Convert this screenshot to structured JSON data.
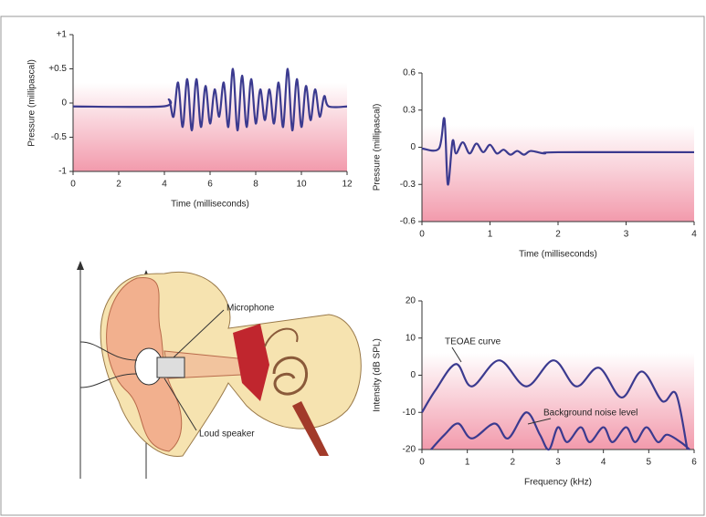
{
  "chart_data": [
    {
      "type": "line",
      "x_label": "Time (milliseconds)",
      "y_label": "Pressure (millipascal)",
      "x": [
        0,
        3.9,
        4.2,
        4.4,
        4.6,
        4.8,
        5.0,
        5.2,
        5.4,
        5.6,
        5.8,
        6.0,
        6.2,
        6.4,
        6.6,
        6.8,
        7.0,
        7.2,
        7.4,
        7.6,
        7.8,
        8.0,
        8.2,
        8.4,
        8.6,
        8.8,
        9.0,
        9.2,
        9.4,
        9.6,
        9.8,
        10.0,
        10.2,
        10.4,
        10.6,
        10.8,
        11.0,
        11.2,
        12
      ],
      "values": [
        -0.05,
        -0.05,
        0.05,
        -0.2,
        0.3,
        -0.35,
        0.35,
        -0.4,
        0.35,
        -0.35,
        0.25,
        -0.3,
        0.2,
        -0.2,
        0.3,
        -0.35,
        0.5,
        -0.4,
        0.4,
        -0.35,
        0.35,
        -0.3,
        0.2,
        -0.25,
        0.2,
        -0.3,
        0.3,
        -0.35,
        0.5,
        -0.4,
        0.35,
        -0.35,
        0.25,
        -0.25,
        0.2,
        -0.2,
        0.1,
        -0.05,
        -0.05
      ],
      "color": "#3b3a8f",
      "xlim": [
        0,
        12
      ],
      "ylim": [
        -1,
        1
      ],
      "xticks": [
        0,
        2,
        4,
        6,
        8,
        10,
        12
      ],
      "yticks": [
        {
          "value": 1,
          "label": "+1"
        },
        {
          "value": 0.5,
          "label": "+0.5"
        },
        0,
        -0.5,
        -1
      ]
    },
    {
      "type": "line",
      "x_label": "Time (milliseconds)",
      "y_label": "Pressure (millipascal)",
      "x": [
        0,
        0.25,
        0.33,
        0.38,
        0.45,
        0.5,
        0.6,
        0.7,
        0.8,
        0.9,
        1.0,
        1.1,
        1.2,
        1.3,
        1.4,
        1.5,
        1.6,
        1.8,
        2.0,
        4
      ],
      "values": [
        -0.01,
        -0.01,
        0.23,
        -0.3,
        0.05,
        -0.05,
        0.04,
        -0.05,
        0.03,
        -0.04,
        0.02,
        -0.05,
        -0.02,
        -0.06,
        -0.03,
        -0.06,
        -0.03,
        -0.05,
        -0.04,
        -0.04
      ],
      "color": "#3b3a8f",
      "xlim": [
        0,
        4
      ],
      "ylim": [
        -0.6,
        0.6
      ],
      "xticks": [
        0,
        1,
        2,
        3,
        4
      ],
      "yticks": [
        0.6,
        0.3,
        0,
        -0.3,
        -0.6
      ]
    },
    {
      "type": "line",
      "x_label": "Frequency (kHz)",
      "y_label": "Intensity (dB SPL)",
      "series": [
        {
          "name": "TEOAE curve",
          "color": "#3b3a8f",
          "x": [
            0,
            0.3,
            0.75,
            1.1,
            1.7,
            2.3,
            2.9,
            3.4,
            3.9,
            4.4,
            4.85,
            5.3,
            5.6,
            5.85
          ],
          "values": [
            -10,
            -4,
            3,
            -3,
            4,
            -3,
            4,
            -3,
            2,
            -6,
            1,
            -7,
            -5,
            -20
          ]
        },
        {
          "name": "Background noise level",
          "color": "#3b3a8f",
          "x": [
            0.2,
            0.5,
            0.8,
            1.1,
            1.6,
            1.9,
            2.3,
            2.6,
            2.8,
            3.0,
            3.2,
            3.5,
            3.7,
            4.0,
            4.2,
            4.5,
            4.7,
            4.95,
            5.2,
            5.4,
            5.7,
            5.9
          ],
          "values": [
            -20,
            -16,
            -13,
            -17,
            -13,
            -17,
            -10,
            -16,
            -20,
            -14,
            -18,
            -14,
            -18,
            -14,
            -18,
            -14,
            -18,
            -14,
            -18,
            -16,
            -18,
            -20
          ]
        }
      ],
      "xlim": [
        0,
        6
      ],
      "ylim": [
        -20,
        20
      ],
      "xticks": [
        0,
        1,
        2,
        3,
        4,
        5,
        6
      ],
      "yticks": [
        20,
        10,
        0,
        -10,
        -20
      ]
    }
  ],
  "diagram": {
    "labels": [
      "Microphone",
      "Loud speaker"
    ]
  }
}
